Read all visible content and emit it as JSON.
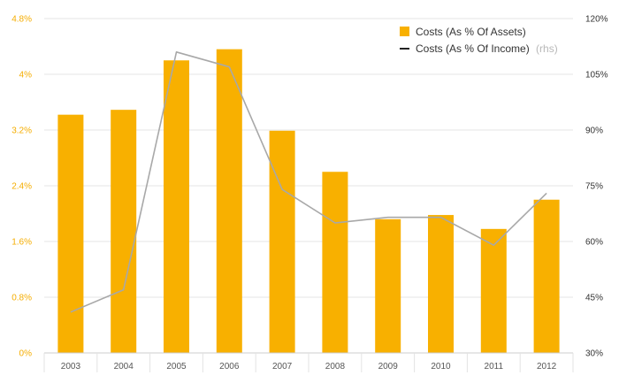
{
  "chart_data": {
    "type": "bar",
    "categories": [
      "2003",
      "2004",
      "2005",
      "2006",
      "2007",
      "2008",
      "2009",
      "2010",
      "2011",
      "2012"
    ],
    "series": [
      {
        "name": "Costs (As % Of Assets)",
        "type": "bar",
        "axis": "left",
        "color": "#f8b000",
        "values": [
          3.42,
          3.49,
          4.2,
          4.36,
          3.19,
          2.6,
          1.92,
          1.98,
          1.78,
          2.2
        ]
      },
      {
        "name": "Costs (As % Of Income)",
        "type": "line",
        "axis": "right",
        "color": "#a8a8a8",
        "values": [
          41,
          47,
          111,
          107,
          74,
          65,
          66.5,
          66.5,
          59,
          73
        ]
      }
    ],
    "y_left": {
      "ylim": [
        0,
        4.8
      ],
      "ticks": [
        "0%",
        "0.8%",
        "1.6%",
        "2.4%",
        "3.2%",
        "4%",
        "4.8%"
      ]
    },
    "y_right": {
      "ylim": [
        30,
        120
      ],
      "ticks": [
        "30%",
        "45%",
        "60%",
        "75%",
        "90%",
        "105%",
        "120%"
      ]
    },
    "legend": {
      "position": "top-right",
      "bar_label": "Costs (As % Of Assets)",
      "line_label": "Costs (As % Of Income)",
      "line_suffix": "(rhs)"
    },
    "grid": true
  }
}
